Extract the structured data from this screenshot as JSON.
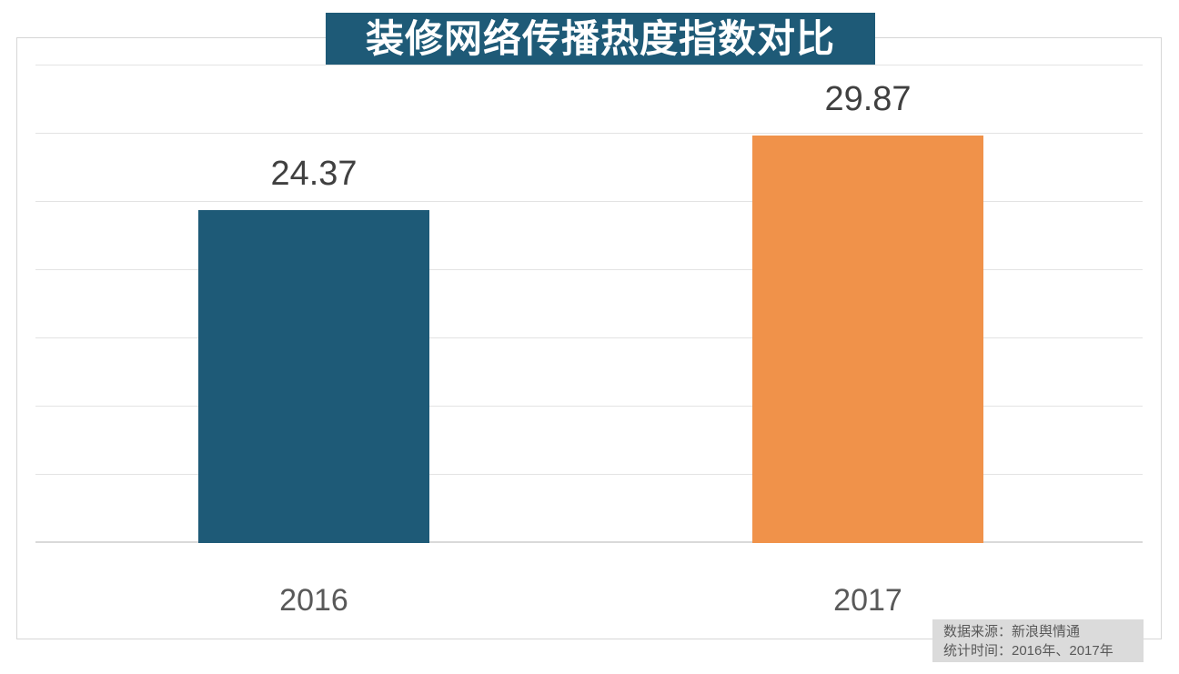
{
  "title": {
    "text": "装修网络传播热度指数对比",
    "bg_color": "#1E5A77",
    "text_color": "#ffffff"
  },
  "source_note": {
    "bg_color": "#dbdbdb",
    "line1": "数据来源：新浪舆情通",
    "line2": "统计时间：2016年、2017年"
  },
  "colors": {
    "bar_2016": "#1E5A77",
    "bar_2017": "#F0924A",
    "gridline": "#e3e3e3",
    "axis_line": "#d9d9d9",
    "frame_border": "#d6d6d6",
    "value_text": "#404040",
    "category_text": "#595959"
  },
  "chart_data": {
    "type": "bar",
    "title": "装修网络传播热度指数对比",
    "categories": [
      "2016",
      "2017"
    ],
    "values": [
      24.37,
      29.87
    ],
    "value_labels": [
      "24.37",
      "29.87"
    ],
    "bar_colors": [
      "#1E5A77",
      "#F0924A"
    ],
    "ylim": [
      0,
      35
    ],
    "grid_step": 5,
    "gridlines": "horizontal only, light gray, no y-axis tick labels",
    "legend": "none",
    "xlabel": "",
    "ylabel": "",
    "annotations": [
      "数据来源：新浪舆情通",
      "统计时间：2016年、2017年"
    ]
  }
}
